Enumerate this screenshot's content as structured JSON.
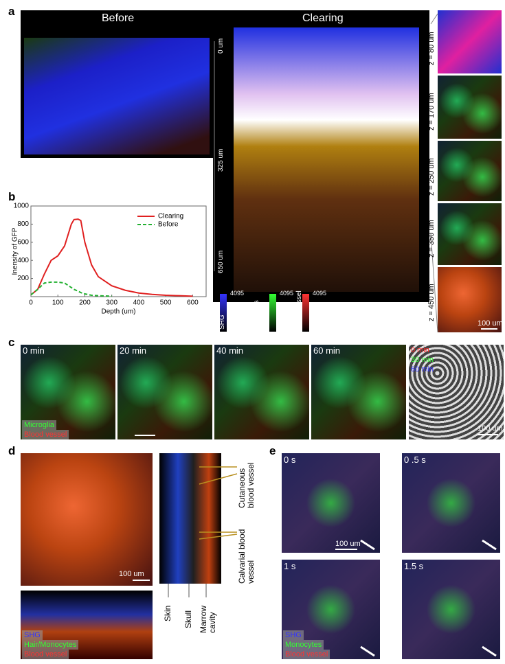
{
  "panel_labels": [
    "a",
    "b",
    "c",
    "d",
    "e"
  ],
  "panel_a": {
    "before": "Before",
    "clearing": "Clearing",
    "depth_ticks": [
      "0 um",
      "325 um",
      "650 um"
    ],
    "z_labels": [
      "z = 80 um",
      "z = 170 um",
      "z = 250 um",
      "z = 350 um",
      "z = 450 um"
    ],
    "scale_bar": "100 um",
    "colorbars": [
      {
        "name": "SHG",
        "max": "4095",
        "min": "0"
      },
      {
        "name": "Hair\nMoncytes\nMicriglia",
        "max": "4095",
        "min": "0"
      },
      {
        "name": "Blood vessel",
        "max": "4095",
        "min": "0"
      }
    ]
  },
  "chart_data": {
    "type": "line",
    "xlabel": "Depth (um)",
    "ylabel": "Inensity of GFP",
    "x": [
      0,
      25,
      50,
      75,
      100,
      125,
      150,
      160,
      175,
      185,
      200,
      225,
      250,
      300,
      350,
      400,
      450,
      500,
      550,
      600
    ],
    "series": [
      {
        "name": "Clearing",
        "color": "#e02020",
        "dash": false,
        "values": [
          20,
          80,
          250,
          400,
          450,
          560,
          800,
          850,
          855,
          840,
          600,
          350,
          220,
          120,
          70,
          40,
          25,
          15,
          10,
          5
        ]
      },
      {
        "name": "Before",
        "color": "#22b030",
        "dash": true,
        "values": [
          20,
          80,
          150,
          160,
          160,
          150,
          100,
          80,
          60,
          45,
          30,
          15,
          10,
          5,
          null,
          null,
          null,
          null,
          null,
          null
        ]
      }
    ],
    "xlim": [
      0,
      650
    ],
    "ylim": [
      0,
      1000
    ],
    "xticks": [
      0,
      100,
      200,
      300,
      400,
      500,
      600
    ],
    "yticks": [
      200,
      400,
      600,
      800,
      1000
    ],
    "legend": "upper right"
  },
  "panel_c": {
    "times": [
      "0 min",
      "20 min",
      "40 min",
      "60 min"
    ],
    "merge_labels": [
      "0 min",
      "30 min",
      "60 min"
    ],
    "legend": [
      "Microglia",
      "Blood vessel"
    ],
    "scale_bar": "100 um"
  },
  "panel_d": {
    "scale_bar": "100 um",
    "legend": [
      "SHG",
      "Hair/Monocytes",
      "Blood vessel"
    ],
    "vessel_labels": [
      "Cutaneous\nblood vessel",
      "Calvarial blood\nvessel"
    ],
    "layer_labels": [
      "Skin",
      "Skull",
      "Marrow\ncavity"
    ]
  },
  "panel_e": {
    "times": [
      "0 s",
      "0 .5 s",
      "1 s",
      "1.5 s"
    ],
    "scale_bar": "100 um",
    "legend": [
      "SHG",
      "Monocytes",
      "Blood vessel"
    ]
  }
}
